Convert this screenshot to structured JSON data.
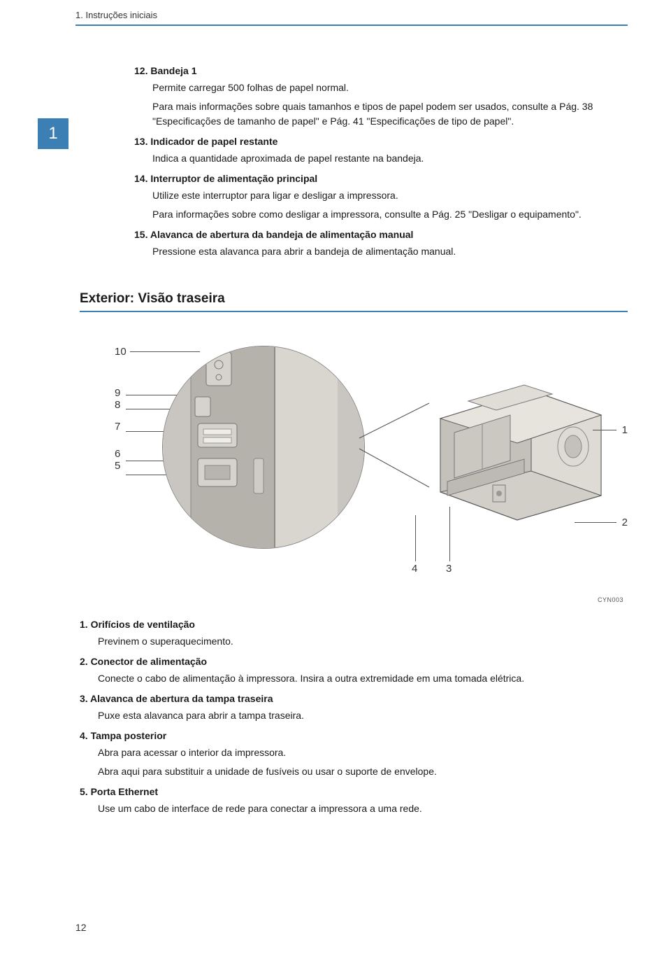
{
  "header": {
    "breadcrumb": "1. Instruções iniciais"
  },
  "chapter_tab": "1",
  "items_top": [
    {
      "num": "12.",
      "title": "Bandeja 1",
      "body": [
        "Permite carregar 500 folhas de papel normal.",
        "Para mais informações sobre quais tamanhos e tipos de papel podem ser usados, consulte a Pág. 38 \"Especificações de tamanho de papel\" e Pág. 41 \"Especificações de tipo de papel\"."
      ]
    },
    {
      "num": "13.",
      "title": "Indicador de papel restante",
      "body": [
        "Indica a quantidade aproximada de papel restante na bandeja."
      ]
    },
    {
      "num": "14.",
      "title": "Interruptor de alimentação principal",
      "body": [
        "Utilize este interruptor para ligar e desligar a impressora.",
        "Para informações sobre como desligar a impressora, consulte a Pág. 25 \"Desligar o equipamento\"."
      ]
    },
    {
      "num": "15.",
      "title": "Alavanca de abertura da bandeja de alimentação manual",
      "body": [
        "Pressione esta alavanca para abrir a bandeja de alimentação manual."
      ]
    }
  ],
  "section_heading": "Exterior: Visão traseira",
  "figure": {
    "left_labels": [
      "10",
      "9",
      "8",
      "7",
      "6",
      "5"
    ],
    "right_labels": [
      "1",
      "2"
    ],
    "bottom_labels": [
      "4",
      "3"
    ],
    "code": "CYN003",
    "circle_fill": "#c9c6c1",
    "printer_fill": "#d2cfc9",
    "printer_edge": "#5a5a5a",
    "accent": "#3b7fb5"
  },
  "items_bottom": [
    {
      "num": "1.",
      "title": "Orifícios de ventilação",
      "body": [
        "Previnem o superaquecimento."
      ]
    },
    {
      "num": "2.",
      "title": "Conector de alimentação",
      "body": [
        "Conecte o cabo de alimentação à impressora. Insira a outra extremidade em uma tomada elétrica."
      ]
    },
    {
      "num": "3.",
      "title": "Alavanca de abertura da tampa traseira",
      "body": [
        "Puxe esta alavanca para abrir a tampa traseira."
      ]
    },
    {
      "num": "4.",
      "title": "Tampa posterior",
      "body": [
        "Abra para acessar o interior da impressora.",
        "Abra aqui para substituir a unidade de fusíveis ou usar o suporte de envelope."
      ]
    },
    {
      "num": "5.",
      "title": "Porta Ethernet",
      "body": [
        "Use um cabo de interface de rede para conectar a impressora a uma rede."
      ]
    }
  ],
  "page_number": "12"
}
